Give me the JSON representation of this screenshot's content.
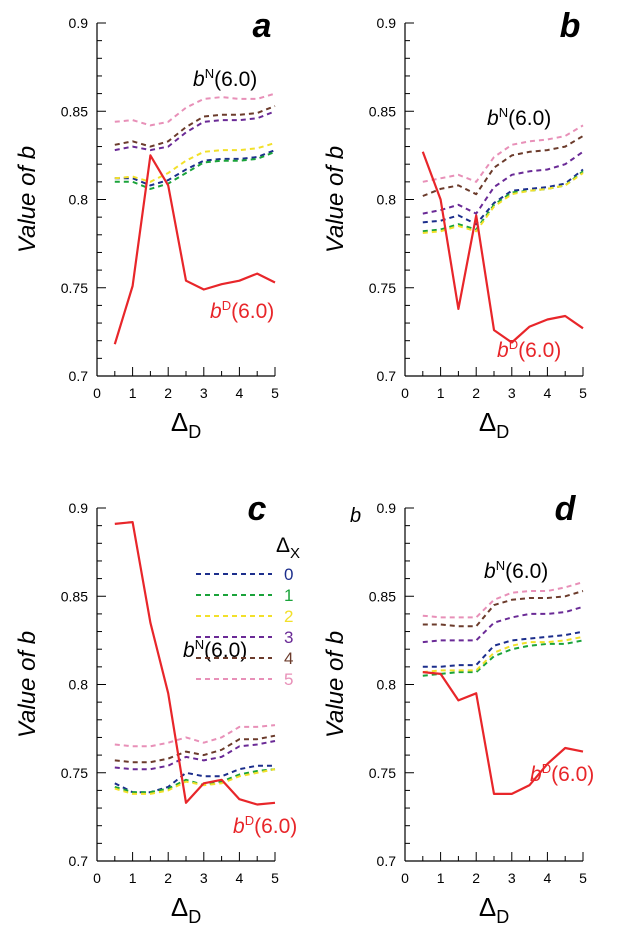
{
  "figure": {
    "corner_label_d": "b"
  },
  "legend": {
    "title_symbol": "Δ",
    "title_sub": "X",
    "entries": [
      {
        "label": "0",
        "color": "#1c2e8c"
      },
      {
        "label": "1",
        "color": "#1aa33a"
      },
      {
        "label": "2",
        "color": "#f2e02a"
      },
      {
        "label": "3",
        "color": "#6a2a96"
      },
      {
        "label": "4",
        "color": "#6b3b2b"
      },
      {
        "label": "5",
        "color": "#e890b8"
      }
    ]
  },
  "colors": {
    "bD": "#e8262a",
    "series": [
      "#1c2e8c",
      "#1aa33a",
      "#f2e02a",
      "#6a2a96",
      "#6b3b2b",
      "#e890b8"
    ]
  },
  "chart_data": [
    {
      "panel": "a",
      "type": "line",
      "ylabel": "Value of b",
      "xlabel_symbol": "Δ",
      "xlabel_sub": "D",
      "xlim": [
        0,
        5
      ],
      "ylim": [
        0.7,
        0.9
      ],
      "xticks": [
        "0",
        "1",
        "2",
        "3",
        "4",
        "5"
      ],
      "yticks": [
        "0.7",
        "0.75",
        "0.8",
        "0.85",
        "0.9"
      ],
      "x": [
        0.5,
        1,
        1.5,
        2,
        2.5,
        3,
        3.5,
        4,
        4.5,
        5
      ],
      "series": [
        {
          "name": "0",
          "style": "dashed",
          "values": [
            0.812,
            0.812,
            0.808,
            0.811,
            0.817,
            0.822,
            0.823,
            0.823,
            0.824,
            0.828
          ]
        },
        {
          "name": "1",
          "style": "dashed",
          "values": [
            0.81,
            0.81,
            0.806,
            0.809,
            0.815,
            0.821,
            0.822,
            0.822,
            0.823,
            0.827
          ]
        },
        {
          "name": "2",
          "style": "dashed",
          "values": [
            0.812,
            0.813,
            0.81,
            0.815,
            0.822,
            0.827,
            0.828,
            0.828,
            0.829,
            0.832
          ]
        },
        {
          "name": "3",
          "style": "dashed",
          "values": [
            0.828,
            0.83,
            0.828,
            0.83,
            0.838,
            0.844,
            0.845,
            0.845,
            0.846,
            0.85
          ]
        },
        {
          "name": "4",
          "style": "dashed",
          "values": [
            0.831,
            0.833,
            0.83,
            0.833,
            0.841,
            0.847,
            0.848,
            0.848,
            0.849,
            0.853
          ]
        },
        {
          "name": "5",
          "style": "dashed",
          "values": [
            0.844,
            0.845,
            0.842,
            0.844,
            0.852,
            0.857,
            0.858,
            0.857,
            0.857,
            0.86
          ]
        },
        {
          "name": "bD(6.0)",
          "style": "solid",
          "values": [
            0.718,
            0.751,
            0.825,
            0.808,
            0.754,
            0.749,
            0.752,
            0.754,
            0.758,
            0.753
          ]
        }
      ],
      "annotations": [
        {
          "base": "b",
          "sup": "N",
          "rest": "(6.0)",
          "color": "#000000"
        },
        {
          "base": "b",
          "sup": "D",
          "rest": "(6.0)",
          "color": "#e8262a"
        }
      ]
    },
    {
      "panel": "b",
      "type": "line",
      "ylabel": "Value of b",
      "xlabel_symbol": "Δ",
      "xlabel_sub": "D",
      "xlim": [
        0,
        5
      ],
      "ylim": [
        0.7,
        0.9
      ],
      "xticks": [
        "0",
        "1",
        "2",
        "3",
        "4",
        "5"
      ],
      "yticks": [
        "0.7",
        "0.75",
        "0.8",
        "0.85",
        "0.9"
      ],
      "x": [
        0.5,
        1,
        1.5,
        2,
        2.5,
        3,
        3.5,
        4,
        4.5,
        5
      ],
      "series": [
        {
          "name": "0",
          "style": "dashed",
          "values": [
            0.787,
            0.788,
            0.791,
            0.786,
            0.798,
            0.805,
            0.806,
            0.807,
            0.809,
            0.817
          ]
        },
        {
          "name": "1",
          "style": "dashed",
          "values": [
            0.782,
            0.783,
            0.786,
            0.783,
            0.797,
            0.804,
            0.805,
            0.806,
            0.808,
            0.816
          ]
        },
        {
          "name": "2",
          "style": "dashed",
          "values": [
            0.781,
            0.782,
            0.785,
            0.782,
            0.796,
            0.803,
            0.805,
            0.806,
            0.808,
            0.815
          ]
        },
        {
          "name": "3",
          "style": "dashed",
          "values": [
            0.792,
            0.794,
            0.797,
            0.792,
            0.807,
            0.814,
            0.816,
            0.817,
            0.82,
            0.827
          ]
        },
        {
          "name": "4",
          "style": "dashed",
          "values": [
            0.802,
            0.806,
            0.808,
            0.803,
            0.818,
            0.825,
            0.827,
            0.828,
            0.83,
            0.836
          ]
        },
        {
          "name": "5",
          "style": "dashed",
          "values": [
            0.81,
            0.812,
            0.814,
            0.81,
            0.824,
            0.831,
            0.833,
            0.834,
            0.836,
            0.842
          ]
        },
        {
          "name": "bD(6.0)",
          "style": "solid",
          "values": [
            0.827,
            0.8,
            0.738,
            0.791,
            0.726,
            0.719,
            0.728,
            0.732,
            0.734,
            0.727
          ]
        }
      ],
      "annotations": [
        {
          "base": "b",
          "sup": "N",
          "rest": "(6.0)",
          "color": "#000000"
        },
        {
          "base": "b",
          "sup": "D",
          "rest": "(6.0)",
          "color": "#e8262a"
        }
      ]
    },
    {
      "panel": "c",
      "type": "line",
      "ylabel": "Value of b",
      "xlabel_symbol": "Δ",
      "xlabel_sub": "D",
      "xlim": [
        0,
        5
      ],
      "ylim": [
        0.7,
        0.9
      ],
      "xticks": [
        "0",
        "1",
        "2",
        "3",
        "4",
        "5"
      ],
      "yticks": [
        "0.7",
        "0.75",
        "0.8",
        "0.85",
        "0.9"
      ],
      "x": [
        0.5,
        1,
        1.5,
        2,
        2.5,
        3,
        3.5,
        4,
        4.5,
        5
      ],
      "series": [
        {
          "name": "0",
          "style": "dashed",
          "values": [
            0.744,
            0.739,
            0.739,
            0.742,
            0.75,
            0.748,
            0.748,
            0.752,
            0.754,
            0.754
          ]
        },
        {
          "name": "1",
          "style": "dashed",
          "values": [
            0.742,
            0.739,
            0.739,
            0.741,
            0.746,
            0.743,
            0.745,
            0.749,
            0.751,
            0.752
          ]
        },
        {
          "name": "2",
          "style": "dashed",
          "values": [
            0.741,
            0.738,
            0.738,
            0.74,
            0.745,
            0.743,
            0.744,
            0.748,
            0.75,
            0.752
          ]
        },
        {
          "name": "3",
          "style": "dashed",
          "values": [
            0.753,
            0.752,
            0.752,
            0.754,
            0.759,
            0.757,
            0.759,
            0.765,
            0.766,
            0.768
          ]
        },
        {
          "name": "4",
          "style": "dashed",
          "values": [
            0.757,
            0.756,
            0.756,
            0.758,
            0.762,
            0.76,
            0.763,
            0.769,
            0.769,
            0.771
          ]
        },
        {
          "name": "5",
          "style": "dashed",
          "values": [
            0.766,
            0.765,
            0.765,
            0.767,
            0.77,
            0.767,
            0.77,
            0.776,
            0.776,
            0.777
          ]
        },
        {
          "name": "bD(6.0)",
          "style": "solid",
          "values": [
            0.891,
            0.892,
            0.835,
            0.795,
            0.733,
            0.744,
            0.746,
            0.735,
            0.732,
            0.733
          ]
        }
      ],
      "annotations": [
        {
          "base": "b",
          "sup": "N",
          "rest": "(6.0)",
          "color": "#000000"
        },
        {
          "base": "b",
          "sup": "D",
          "rest": "(6.0)",
          "color": "#e8262a"
        }
      ]
    },
    {
      "panel": "d",
      "type": "line",
      "ylabel": "Value of b",
      "xlabel_symbol": "Δ",
      "xlabel_sub": "D",
      "xlim": [
        0,
        5
      ],
      "ylim": [
        0.7,
        0.9
      ],
      "xticks": [
        "0",
        "1",
        "2",
        "3",
        "4",
        "5"
      ],
      "yticks": [
        "0.7",
        "0.75",
        "0.8",
        "0.85",
        "0.9"
      ],
      "x": [
        0.5,
        1,
        1.5,
        2,
        2.5,
        3,
        3.5,
        4,
        4.5,
        5
      ],
      "series": [
        {
          "name": "0",
          "style": "dashed",
          "values": [
            0.81,
            0.81,
            0.811,
            0.811,
            0.822,
            0.825,
            0.826,
            0.827,
            0.828,
            0.83
          ]
        },
        {
          "name": "1",
          "style": "dashed",
          "values": [
            0.805,
            0.806,
            0.807,
            0.807,
            0.816,
            0.82,
            0.822,
            0.823,
            0.823,
            0.825
          ]
        },
        {
          "name": "2",
          "style": "dashed",
          "values": [
            0.807,
            0.808,
            0.808,
            0.808,
            0.818,
            0.822,
            0.824,
            0.824,
            0.825,
            0.827
          ]
        },
        {
          "name": "3",
          "style": "dashed",
          "values": [
            0.824,
            0.825,
            0.825,
            0.825,
            0.835,
            0.838,
            0.84,
            0.84,
            0.841,
            0.844
          ]
        },
        {
          "name": "4",
          "style": "dashed",
          "values": [
            0.834,
            0.834,
            0.833,
            0.833,
            0.845,
            0.848,
            0.849,
            0.849,
            0.85,
            0.853
          ]
        },
        {
          "name": "5",
          "style": "dashed",
          "values": [
            0.839,
            0.838,
            0.838,
            0.838,
            0.848,
            0.852,
            0.853,
            0.853,
            0.855,
            0.858
          ]
        },
        {
          "name": "bD(6.0)",
          "style": "solid",
          "values": [
            0.807,
            0.806,
            0.791,
            0.795,
            0.738,
            0.738,
            0.743,
            0.755,
            0.764,
            0.762
          ]
        }
      ],
      "annotations": [
        {
          "base": "b",
          "sup": "N",
          "rest": "(6.0)",
          "color": "#000000"
        },
        {
          "base": "b",
          "sup": "D",
          "rest": "(6.0)",
          "color": "#e8262a"
        }
      ]
    }
  ]
}
